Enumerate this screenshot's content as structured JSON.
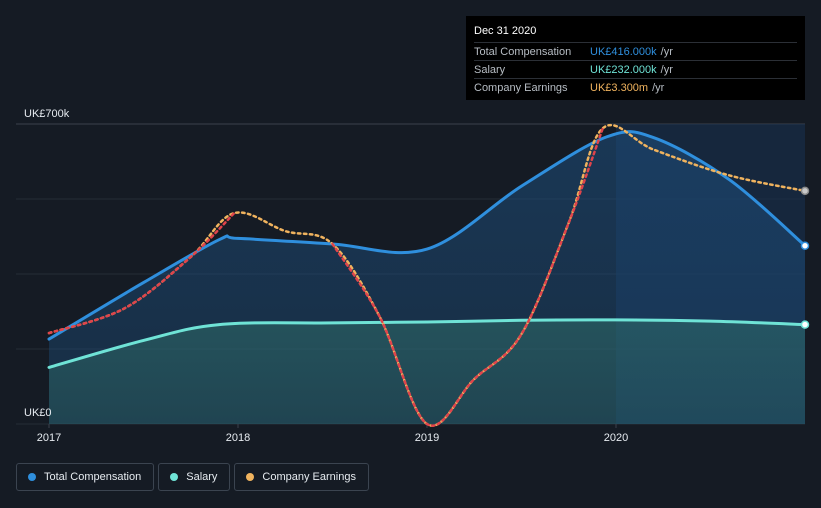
{
  "chart_data": {
    "type": "area",
    "title": "",
    "xlabel": "",
    "ylabel": "",
    "x_tick_labels": [
      "2017",
      "2018",
      "2019",
      "2020"
    ],
    "y_tick_labels": [
      "UK£700k",
      "UK£0"
    ],
    "ylim": [
      0,
      700
    ],
    "y_unit": "UK£k",
    "grid": true,
    "legend_position": "bottom-left",
    "series": [
      {
        "name": "Total Compensation",
        "color": "#2f8fdd",
        "fill": "area",
        "points": [
          {
            "x": 2017.0,
            "y": 198
          },
          {
            "x": 2017.5,
            "y": 330
          },
          {
            "x": 2017.9,
            "y": 430
          },
          {
            "x": 2018.0,
            "y": 433
          },
          {
            "x": 2018.5,
            "y": 420
          },
          {
            "x": 2019.0,
            "y": 408
          },
          {
            "x": 2019.5,
            "y": 555
          },
          {
            "x": 2019.95,
            "y": 670
          },
          {
            "x": 2020.2,
            "y": 668
          },
          {
            "x": 2020.6,
            "y": 570
          },
          {
            "x": 2021.0,
            "y": 416
          }
        ]
      },
      {
        "name": "Salary",
        "color": "#6fe3d6",
        "fill": "area",
        "points": [
          {
            "x": 2017.0,
            "y": 132
          },
          {
            "x": 2017.5,
            "y": 195
          },
          {
            "x": 2017.9,
            "y": 232
          },
          {
            "x": 2018.5,
            "y": 236
          },
          {
            "x": 2019.0,
            "y": 238
          },
          {
            "x": 2019.5,
            "y": 242
          },
          {
            "x": 2020.0,
            "y": 243
          },
          {
            "x": 2020.5,
            "y": 240
          },
          {
            "x": 2021.0,
            "y": 232
          }
        ]
      },
      {
        "name": "Company Earnings",
        "color": "#f0b35e",
        "negative_color": "#e0444b",
        "dashed": true,
        "points": [
          {
            "x": 2017.0,
            "y": 212
          },
          {
            "x": 2017.4,
            "y": 270
          },
          {
            "x": 2017.75,
            "y": 390
          },
          {
            "x": 2017.98,
            "y": 492
          },
          {
            "x": 2018.25,
            "y": 450
          },
          {
            "x": 2018.5,
            "y": 420
          },
          {
            "x": 2018.75,
            "y": 250
          },
          {
            "x": 2019.0,
            "y": 0
          },
          {
            "x": 2019.25,
            "y": 105
          },
          {
            "x": 2019.5,
            "y": 210
          },
          {
            "x": 2019.75,
            "y": 470
          },
          {
            "x": 2019.93,
            "y": 690
          },
          {
            "x": 2020.2,
            "y": 640
          },
          {
            "x": 2020.6,
            "y": 580
          },
          {
            "x": 2021.0,
            "y": 544
          }
        ]
      }
    ],
    "highlight_start_x": 2020.0
  },
  "tooltip": {
    "title": "Dec 31 2020",
    "rows": [
      {
        "label": "Total Compensation",
        "value": "UK£416.000k",
        "unit": "/yr",
        "color": "#2f8fdd"
      },
      {
        "label": "Salary",
        "value": "UK£232.000k",
        "unit": "/yr",
        "color": "#6fe3d6"
      },
      {
        "label": "Company Earnings",
        "value": "UK£3.300m",
        "unit": "/yr",
        "color": "#f0b35e"
      }
    ]
  },
  "legend": [
    {
      "label": "Total Compensation",
      "color": "#2f8fdd"
    },
    {
      "label": "Salary",
      "color": "#6fe3d6"
    },
    {
      "label": "Company Earnings",
      "color": "#f0b35e"
    }
  ]
}
